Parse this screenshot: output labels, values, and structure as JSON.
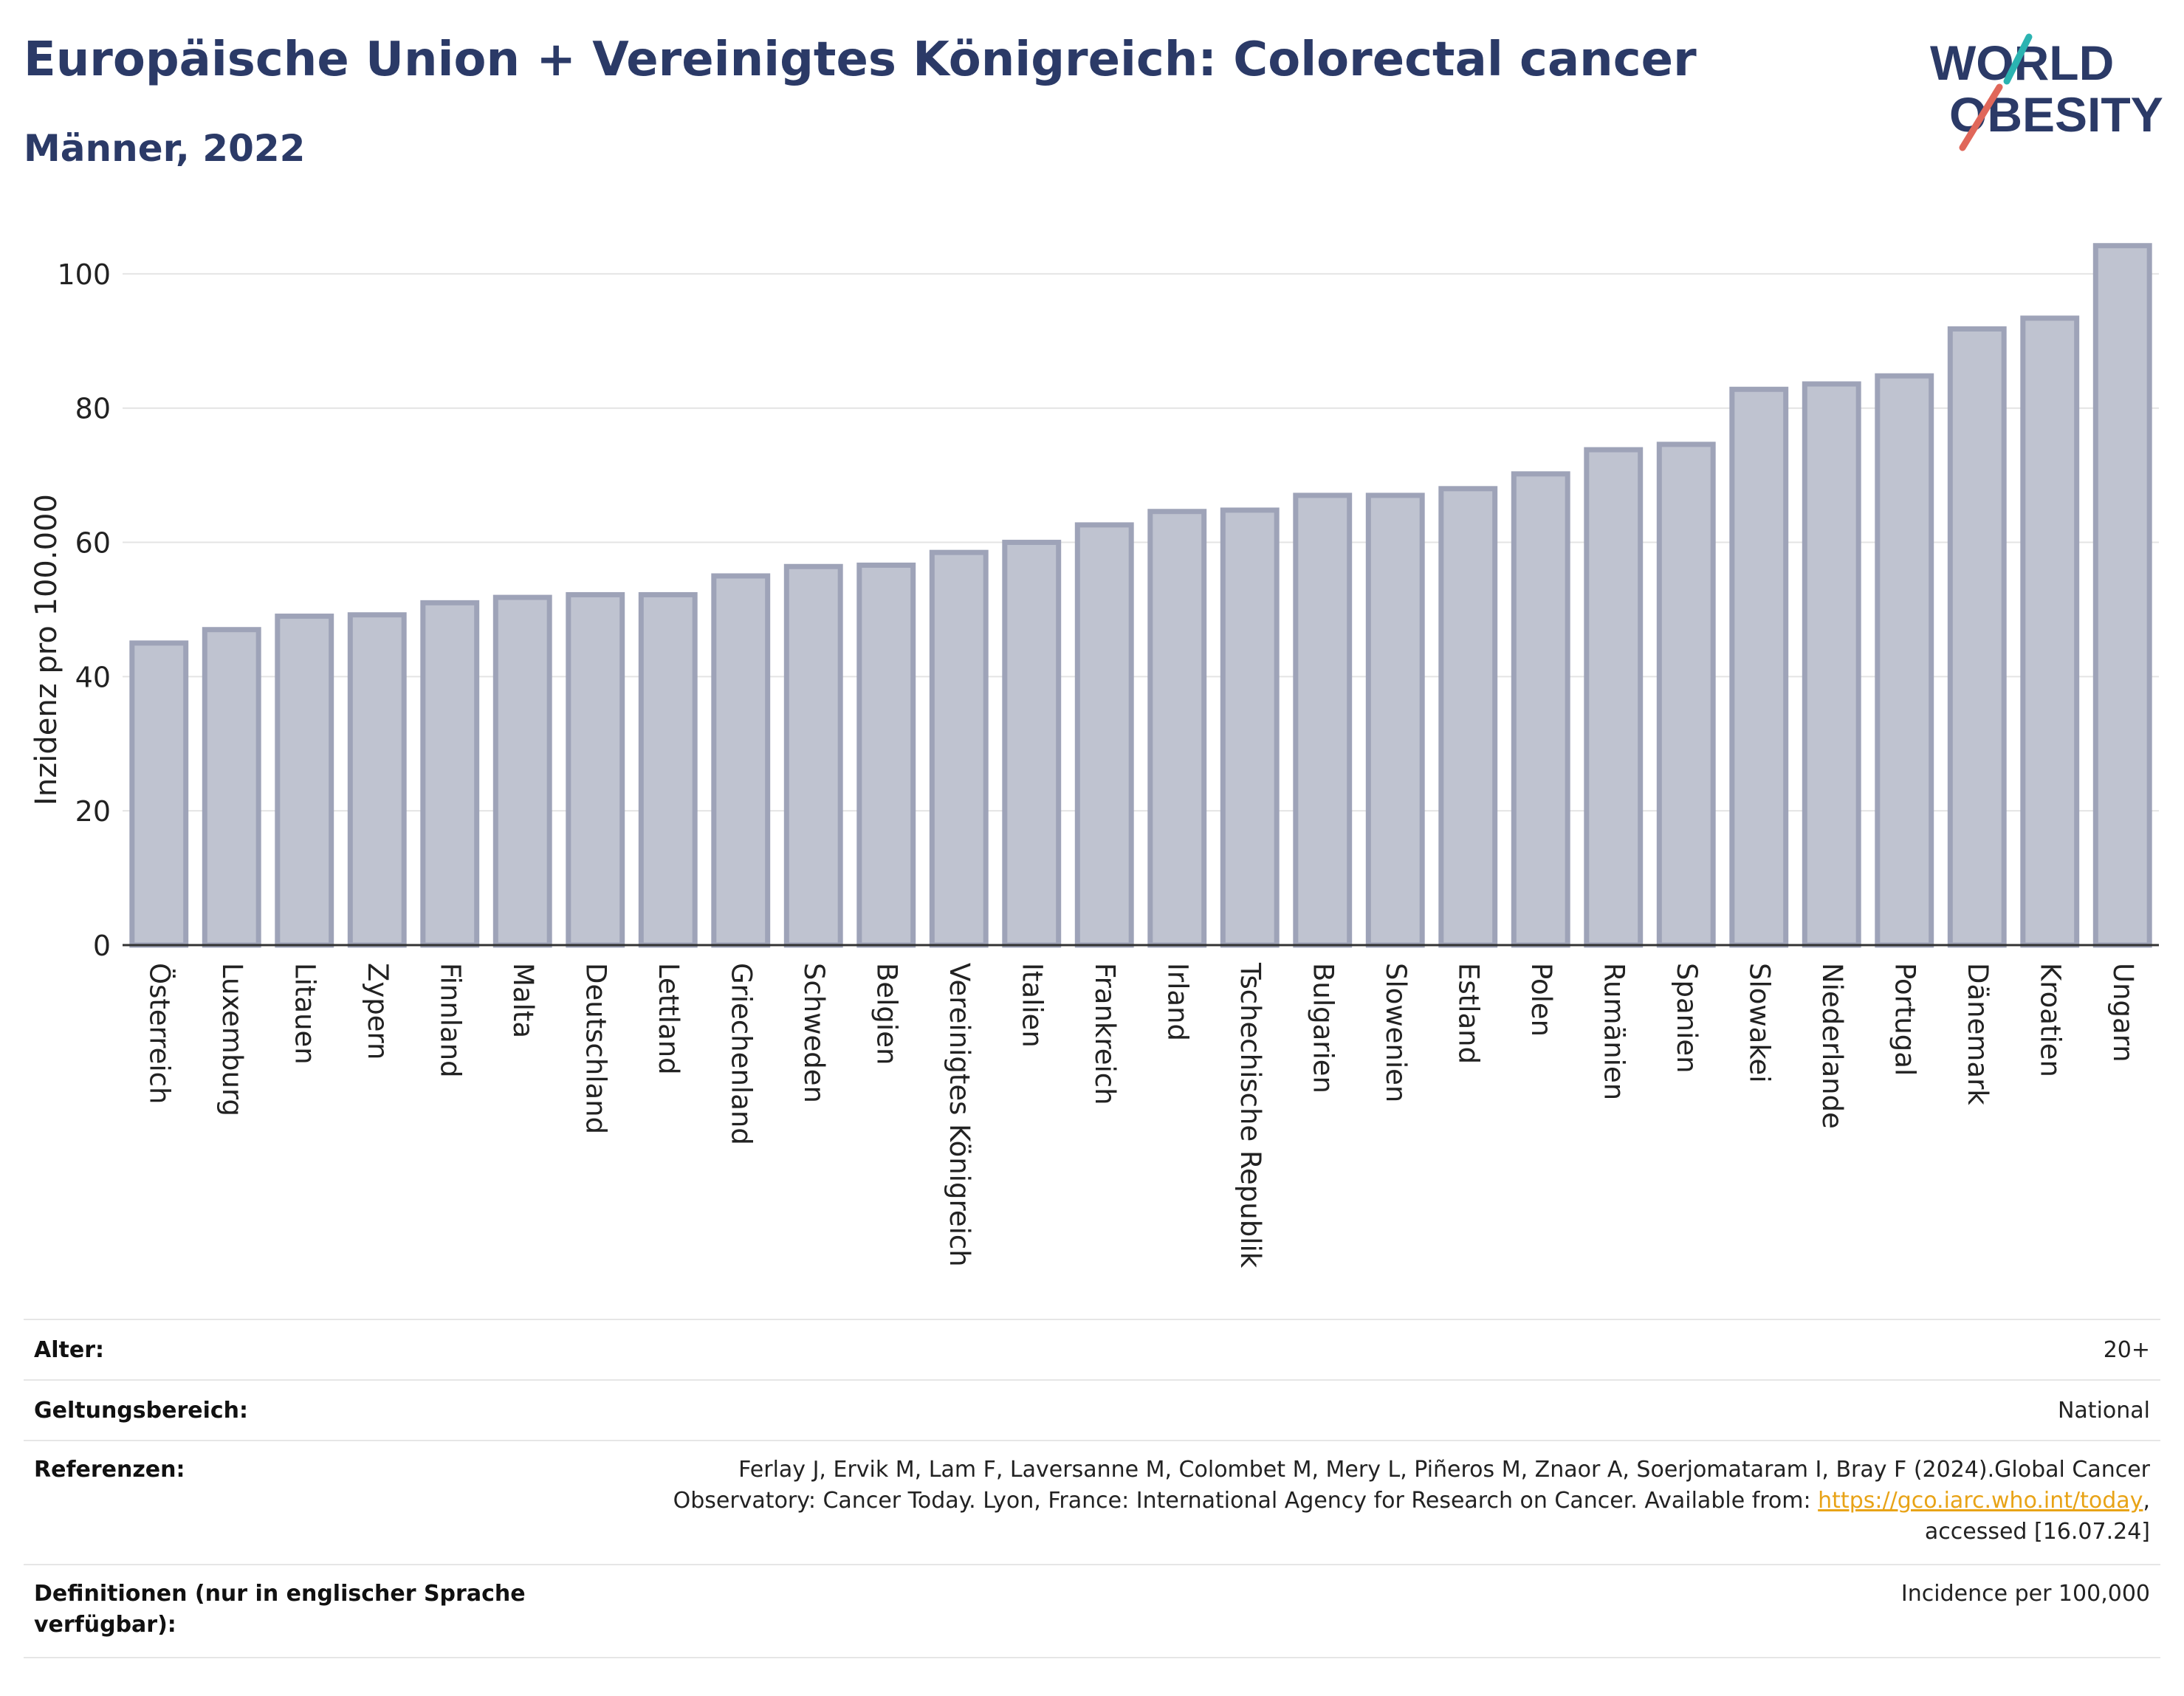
{
  "title": "Europäische Union + Vereinigtes Königreich: Colorectal cancer",
  "subtitle": "Männer, 2022",
  "logo": {
    "line1": "WORLD",
    "line2": "OBESITY",
    "accent_colors": [
      "#2bb3b1",
      "#e0675a"
    ],
    "text_color": "#2b3a67"
  },
  "chart_data": {
    "type": "bar",
    "ylabel": "Inzidenz pro 100.000",
    "xlabel": "",
    "ylim": [
      0,
      110
    ],
    "yticks": [
      0,
      20,
      40,
      60,
      80,
      100
    ],
    "grid": true,
    "bar_color": "#bfc3d0",
    "bar_border_color": "#9ea3b8",
    "categories": [
      "Österreich",
      "Luxemburg",
      "Litauen",
      "Zypern",
      "Finnland",
      "Malta",
      "Deutschland",
      "Lettland",
      "Griechenland",
      "Schweden",
      "Belgien",
      "Vereinigtes Königreich",
      "Italien",
      "Frankreich",
      "Irland",
      "Tschechische Republik",
      "Bulgarien",
      "Slowenien",
      "Estland",
      "Polen",
      "Rumänien",
      "Spanien",
      "Slowakei",
      "Niederlande",
      "Portugal",
      "Dänemark",
      "Kroatien",
      "Ungarn"
    ],
    "values": [
      45.0,
      47.0,
      49.0,
      49.2,
      51.0,
      51.8,
      52.2,
      52.2,
      55.0,
      56.4,
      56.6,
      58.5,
      60.0,
      62.6,
      64.6,
      64.8,
      67.0,
      67.0,
      68.0,
      70.2,
      73.8,
      74.6,
      82.8,
      83.6,
      84.8,
      91.8,
      93.4,
      104.2
    ]
  },
  "info": {
    "age": {
      "label": "Alter:",
      "value": "20+"
    },
    "coverage": {
      "label": "Geltungsbereich:",
      "value": "National"
    },
    "references": {
      "label": "Referenzen:",
      "line1": "Ferlay J, Ervik M, Lam F, Laversanne M, Colombet M, Mery L, Piñeros M, Znaor A, Soerjomataram I, Bray F (2024).Global Cancer",
      "line2_prefix": "Observatory: Cancer Today. Lyon, France: International Agency for Research on Cancer. Available from: ",
      "link": "https://gco.iarc.who.int/today",
      "line2_suffix": ",",
      "line3": "accessed [16.07.24]"
    },
    "definitions": {
      "label_line1": "Definitionen (nur in englischer Sprache",
      "label_line2": "verfügbar):",
      "value": "Incidence per 100,000"
    }
  }
}
